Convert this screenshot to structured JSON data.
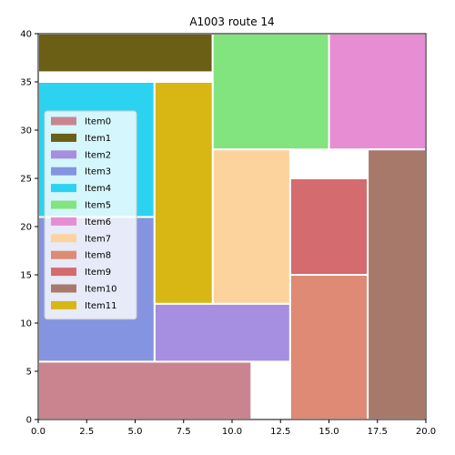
{
  "chart_data": {
    "type": "rectangle-packing",
    "title": "A1003 route 14",
    "xlim": [
      0,
      20
    ],
    "ylim": [
      0,
      40
    ],
    "x_ticks": [
      "0.0",
      "2.5",
      "5.0",
      "7.5",
      "10.0",
      "12.5",
      "15.0",
      "17.5",
      "20.0"
    ],
    "y_ticks": [
      "0",
      "5",
      "10",
      "15",
      "20",
      "25",
      "30",
      "35",
      "40"
    ],
    "legend_position": "center-left",
    "items": [
      {
        "name": "Item0",
        "x": 0,
        "y": 0,
        "w": 11,
        "h": 6,
        "color": "#c98490"
      },
      {
        "name": "Item1",
        "x": 0,
        "y": 36,
        "w": 9,
        "h": 4,
        "color": "#6b5e15"
      },
      {
        "name": "Item2",
        "x": 6,
        "y": 6,
        "w": 7,
        "h": 6,
        "color": "#a68ee0"
      },
      {
        "name": "Item3",
        "x": 0,
        "y": 6,
        "w": 6,
        "h": 15,
        "color": "#8594e0"
      },
      {
        "name": "Item4",
        "x": 0,
        "y": 21,
        "w": 6,
        "h": 14,
        "color": "#2bd3f1"
      },
      {
        "name": "Item5",
        "x": 9,
        "y": 28,
        "w": 6,
        "h": 12,
        "color": "#81e47e"
      },
      {
        "name": "Item6",
        "x": 15,
        "y": 28,
        "w": 5,
        "h": 12,
        "color": "#e78dd4"
      },
      {
        "name": "Item7",
        "x": 9,
        "y": 12,
        "w": 4,
        "h": 16,
        "color": "#fdd39d"
      },
      {
        "name": "Item8",
        "x": 13,
        "y": 0,
        "w": 4,
        "h": 15,
        "color": "#de8a74"
      },
      {
        "name": "Item9",
        "x": 13,
        "y": 15,
        "w": 4,
        "h": 10,
        "color": "#d46b6e"
      },
      {
        "name": "Item10",
        "x": 17,
        "y": 0,
        "w": 3,
        "h": 28,
        "color": "#a7796a"
      },
      {
        "name": "Item11",
        "x": 6,
        "y": 12,
        "w": 3,
        "h": 23,
        "color": "#d8b715"
      }
    ]
  }
}
